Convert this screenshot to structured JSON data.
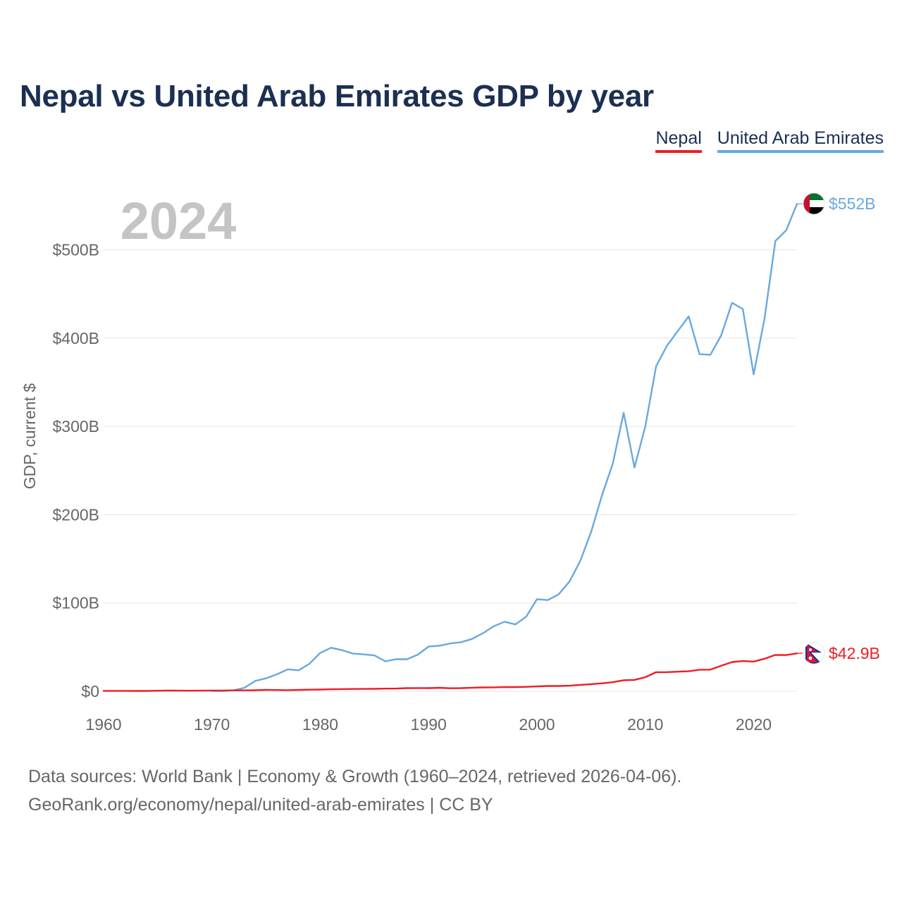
{
  "title": "Nepal vs United Arab Emirates GDP by year",
  "legend": {
    "nepal": "Nepal",
    "uae": "United Arab Emirates"
  },
  "year_watermark": "2024",
  "footer": {
    "line1": "Data sources: World Bank | Economy & Growth (1960–2024, retrieved 2026-04-06).",
    "line2": "GeoRank.org/economy/nepal/united-arab-emirates | CC BY"
  },
  "colors": {
    "nepal": "#ef1c24",
    "uae": "#67a9e0",
    "title": "#1c2f52",
    "axis_text": "#666666",
    "grid": "#e6e6e6",
    "watermark": "#c4c4c4"
  },
  "chart_data": {
    "type": "line",
    "title": "Nepal vs United Arab Emirates GDP by year",
    "xlabel": "",
    "ylabel": "GDP, current $",
    "xlim": [
      1960,
      2024
    ],
    "ylim": [
      0,
      552
    ],
    "x_ticks": [
      1960,
      1970,
      1980,
      1990,
      2000,
      2010,
      2020
    ],
    "y_ticks": [
      {
        "value": 0,
        "label": "$0"
      },
      {
        "value": 100,
        "label": "$100B"
      },
      {
        "value": 200,
        "label": "$200B"
      },
      {
        "value": 300,
        "label": "$300B"
      },
      {
        "value": 400,
        "label": "$400B"
      },
      {
        "value": 500,
        "label": "$500B"
      }
    ],
    "units": "billions of current US dollars",
    "series": [
      {
        "name": "Nepal",
        "color": "#ef1c24",
        "end_label": "$42.9B",
        "flag": "nepal-flag",
        "x": [
          1960,
          1961,
          1962,
          1963,
          1964,
          1965,
          1966,
          1967,
          1968,
          1969,
          1970,
          1971,
          1972,
          1973,
          1974,
          1975,
          1976,
          1977,
          1978,
          1979,
          1980,
          1981,
          1982,
          1983,
          1984,
          1985,
          1986,
          1987,
          1988,
          1989,
          1990,
          1991,
          1992,
          1993,
          1994,
          1995,
          1996,
          1997,
          1998,
          1999,
          2000,
          2001,
          2002,
          2003,
          2004,
          2005,
          2006,
          2007,
          2008,
          2009,
          2010,
          2011,
          2012,
          2013,
          2014,
          2015,
          2016,
          2017,
          2018,
          2019,
          2020,
          2021,
          2022,
          2023,
          2024
        ],
        "values": [
          0.5,
          0.5,
          0.5,
          0.4,
          0.4,
          0.6,
          0.8,
          0.7,
          0.6,
          0.7,
          0.9,
          0.9,
          1.0,
          1.0,
          1.2,
          1.6,
          1.4,
          1.3,
          1.6,
          1.8,
          2.0,
          2.3,
          2.5,
          2.6,
          2.7,
          2.8,
          3.0,
          3.1,
          3.6,
          3.7,
          3.6,
          4.0,
          3.4,
          3.6,
          4.1,
          4.4,
          4.5,
          4.9,
          4.8,
          5.0,
          5.5,
          6.0,
          6.0,
          6.3,
          7.3,
          8.1,
          9.0,
          10.3,
          12.5,
          12.9,
          16.0,
          21.6,
          21.7,
          22.2,
          22.7,
          24.4,
          24.5,
          28.9,
          33.1,
          34.2,
          33.7,
          36.9,
          41.2,
          41.0,
          42.9
        ]
      },
      {
        "name": "United Arab Emirates",
        "color": "#67a9e0",
        "end_label": "$552B",
        "flag": "uae-flag",
        "x": [
          1970,
          1971,
          1972,
          1973,
          1974,
          1975,
          1976,
          1977,
          1978,
          1979,
          1980,
          1981,
          1982,
          1983,
          1984,
          1985,
          1986,
          1987,
          1988,
          1989,
          1990,
          1991,
          1992,
          1993,
          1994,
          1995,
          1996,
          1997,
          1998,
          1999,
          2000,
          2001,
          2002,
          2003,
          2004,
          2005,
          2006,
          2007,
          2008,
          2009,
          2010,
          2011,
          2012,
          2013,
          2014,
          2015,
          2016,
          2017,
          2018,
          2019,
          2020,
          2021,
          2022,
          2023,
          2024
        ],
        "values": [
          0.3,
          0.3,
          1.1,
          4.0,
          11.8,
          14.7,
          19.2,
          24.9,
          23.8,
          31.2,
          43.6,
          49.3,
          46.6,
          42.8,
          41.8,
          40.6,
          33.9,
          36.4,
          36.3,
          41.5,
          50.7,
          51.6,
          54.2,
          55.6,
          59.3,
          65.7,
          73.6,
          78.8,
          75.7,
          84.4,
          104.3,
          103.3,
          109.8,
          124.3,
          147.8,
          180.6,
          222.1,
          257.9,
          315.5,
          253.5,
          300.2,
          368.2,
          391.4,
          408.1,
          424.6,
          381.8,
          381.0,
          403.0,
          440.0,
          433.0,
          358.8,
          422.0,
          510.0,
          522.0,
          552.0
        ]
      }
    ]
  }
}
